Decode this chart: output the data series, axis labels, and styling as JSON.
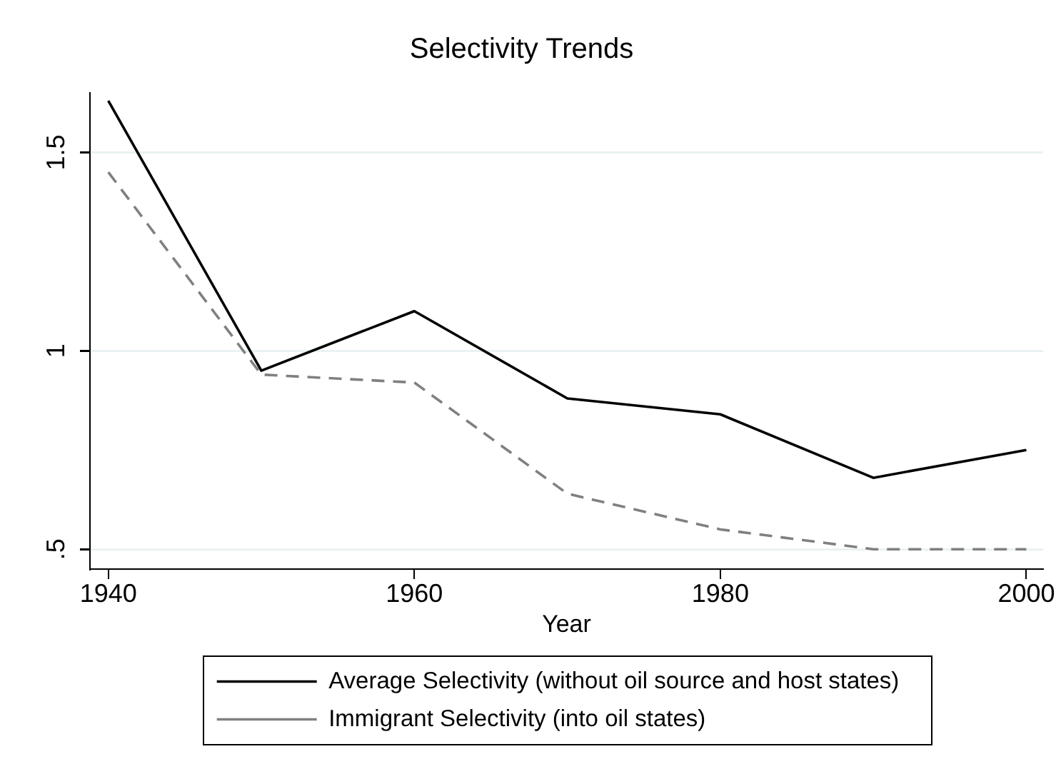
{
  "chart_data": {
    "type": "line",
    "title": "Selectivity Trends",
    "xlabel": "Year",
    "x": [
      1940,
      1950,
      1960,
      1970,
      1980,
      1990,
      2000
    ],
    "series": [
      {
        "name": "Average Selectivity (without oil source and host states)",
        "color": "#000000",
        "line_style": "solid",
        "values": [
          1.63,
          0.95,
          1.1,
          0.88,
          0.84,
          0.68,
          0.75
        ]
      },
      {
        "name": "Immigrant Selectivity (into oil states)",
        "color": "#808080",
        "line_style": "dashed",
        "values": [
          1.45,
          0.94,
          0.92,
          0.64,
          0.55,
          0.5,
          0.5
        ]
      }
    ],
    "xlim": [
      1938.8,
      2001.1
    ],
    "xticks": [
      1940,
      1960,
      1980,
      2000
    ],
    "ylim": [
      0.45,
      1.65
    ],
    "yticks": [
      {
        "value": 0.5,
        "label": ".5"
      },
      1,
      1.5
    ],
    "grid": "y",
    "legend": "bottom"
  }
}
